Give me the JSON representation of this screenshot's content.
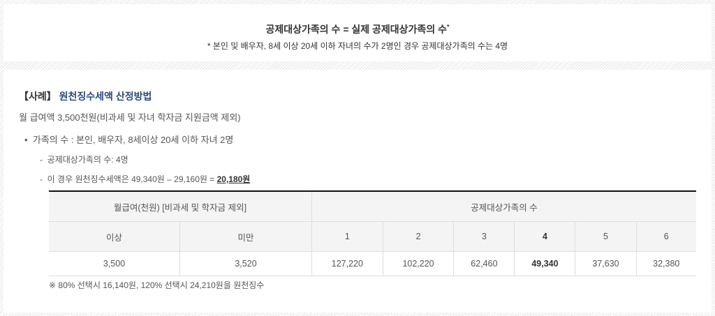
{
  "formula": {
    "title": "공제대상가족의 수 = 실제 공제대상가족의 수",
    "title_mark": "*",
    "footnote": "* 본인 및 배우자, 8세 이상 20세 이하 자녀의 수가 2명인 경우 공제대상가족의 수는 4명"
  },
  "example": {
    "tag": "【사례】",
    "heading": "원천징수세액 산정방법",
    "salary": "월 급여액 3,500천원(비과세 및 자녀 학자금 지원금액 제외)",
    "bullet": "가족의 수 : 본인, 배우자, 8세이상 20세 이하 자녀 2명",
    "dash1": "공제대상가족의 수: 4명",
    "dash2": "이 경우 원천징수세액은 49,340원 – 29,160원 = ",
    "dash2_result": "20,180원",
    "table": {
      "header_salary": "월급여(천원) [비과세 및 학자금 제외]",
      "header_family": "공제대상가족의 수",
      "sub_headers": [
        "이상",
        "미만",
        "1",
        "2",
        "3",
        "4",
        "5",
        "6"
      ],
      "row": [
        "3,500",
        "3,520",
        "127,220",
        "102,220",
        "62,460",
        "49,340",
        "37,630",
        "32,380"
      ],
      "highlight_column": "4"
    },
    "note": "※ 80% 선택시 16,140원, 120% 선택시 24,210원을 원천징수"
  }
}
